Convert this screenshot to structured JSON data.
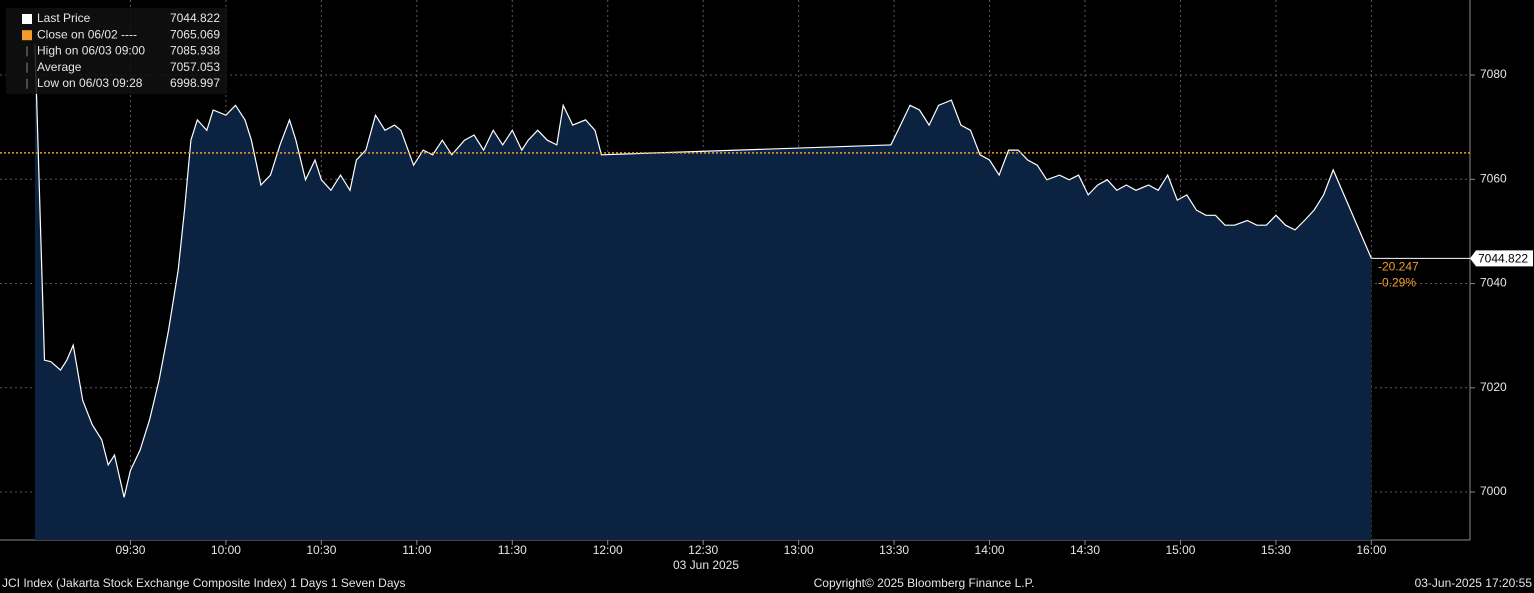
{
  "chart_data": {
    "type": "area",
    "x": [
      "09:00",
      "09:03",
      "09:05",
      "09:08",
      "09:10",
      "09:12",
      "09:15",
      "09:18",
      "09:21",
      "09:23",
      "09:25",
      "09:28",
      "09:30",
      "09:33",
      "09:36",
      "09:39",
      "09:42",
      "09:45",
      "09:47",
      "09:49",
      "09:51",
      "09:54",
      "09:56",
      "10:00",
      "10:03",
      "10:06",
      "10:08",
      "10:11",
      "10:14",
      "10:17",
      "10:20",
      "10:22",
      "10:25",
      "10:28",
      "10:30",
      "10:33",
      "10:36",
      "10:39",
      "10:41",
      "10:44",
      "10:47",
      "10:50",
      "10:53",
      "10:55",
      "10:59",
      "11:02",
      "11:05",
      "11:08",
      "11:11",
      "11:15",
      "11:18",
      "11:21",
      "11:24",
      "11:27",
      "11:30",
      "11:33",
      "11:35",
      "11:38",
      "11:41",
      "11:44",
      "11:46",
      "11:49",
      "11:53",
      "11:56",
      "11:58",
      "13:29",
      "13:32",
      "13:35",
      "13:38",
      "13:41",
      "13:44",
      "13:48",
      "13:51",
      "13:54",
      "13:57",
      "14:00",
      "14:03",
      "14:06",
      "14:09",
      "14:12",
      "14:15",
      "14:18",
      "14:22",
      "14:25",
      "14:28",
      "14:31",
      "14:34",
      "14:37",
      "14:40",
      "14:43",
      "14:46",
      "14:50",
      "14:53",
      "14:56",
      "14:59",
      "15:02",
      "15:05",
      "15:08",
      "15:11",
      "15:14",
      "15:17",
      "15:21",
      "15:24",
      "15:27",
      "15:30",
      "15:33",
      "15:36",
      "15:39",
      "15:42",
      "15:45",
      "15:48",
      "16:00"
    ],
    "series": [
      {
        "name": "Last Price",
        "color": "#ffffff",
        "fill": "#0b2340",
        "values": [
          7085.9,
          7025.3,
          7025,
          7023.4,
          7025.3,
          7028.2,
          7017.6,
          7012.9,
          7010,
          7005.2,
          7007.1,
          6999.0,
          7004.2,
          7008,
          7013.8,
          7021.5,
          7031.1,
          7042.6,
          7054.1,
          7067.5,
          7071.4,
          7069.4,
          7073.3,
          7072.3,
          7074.2,
          7071.4,
          7067.5,
          7058.9,
          7060.8,
          7066.6,
          7071.4,
          7067.5,
          7059.9,
          7063.7,
          7059.9,
          7057.9,
          7060.8,
          7057.9,
          7063.7,
          7065.6,
          7072.3,
          7069.4,
          7070.4,
          7069.4,
          7062.7,
          7065.6,
          7064.7,
          7067.5,
          7064.7,
          7067.5,
          7068.5,
          7065.6,
          7069.4,
          7066.6,
          7069.4,
          7065.6,
          7067.5,
          7069.4,
          7067.5,
          7066.6,
          7074.2,
          7070.4,
          7071.4,
          7069.4,
          7064.7,
          7066.6,
          7070.4,
          7074.2,
          7073.3,
          7070.4,
          7074.2,
          7075.2,
          7070.4,
          7069.4,
          7064.7,
          7063.7,
          7060.8,
          7065.6,
          7065.6,
          7063.7,
          7062.7,
          7059.9,
          7060.8,
          7059.9,
          7060.8,
          7057,
          7058.9,
          7059.9,
          7057.9,
          7058.9,
          7057.9,
          7058.9,
          7057.9,
          7060.8,
          7056.0,
          7057,
          7054.1,
          7053.1,
          7053.1,
          7051.2,
          7051.2,
          7052.1,
          7051.2,
          7051.2,
          7053.1,
          7051.2,
          7050.3,
          7052.1,
          7054.1,
          7057,
          7061.8,
          7044.822
        ]
      }
    ],
    "last_price": 7044.822,
    "reference_lines": [
      {
        "label": "Close on 06/02 ----",
        "value": 7065.069,
        "color": "#f39c2b"
      }
    ],
    "legend_stats": [
      {
        "label": "High on 06/03 09:00",
        "value": 7085.938
      },
      {
        "label": "Average",
        "value": 7057.053
      },
      {
        "label": "Low on 06/03 09:28",
        "value": 6998.997
      }
    ],
    "change_values": [
      -20.247,
      -0.29
    ],
    "change_value_labels": [
      "-20.247",
      "-0.29%"
    ],
    "change_color": "#f39c2b",
    "xlim": [
      "08:49",
      "16:31"
    ],
    "xticks": [
      "09:30",
      "10:00",
      "10:30",
      "11:00",
      "11:30",
      "12:00",
      "12:30",
      "13:00",
      "13:30",
      "14:00",
      "14:30",
      "15:00",
      "15:30",
      "16:00"
    ],
    "x_date_label": "03 Jun 2025",
    "ylim": [
      6990.8,
      7094.4
    ],
    "yticks": [
      7000,
      7020,
      7040,
      7060,
      7080
    ],
    "grid": true,
    "footer": {
      "left": "JCI Index (Jakarta Stock Exchange Composite Index) 1 Days 1 Seven Days",
      "center": "Copyright© 2025 Bloomberg Finance L.P.",
      "right": "03-Jun-2025 17:20:55"
    }
  }
}
